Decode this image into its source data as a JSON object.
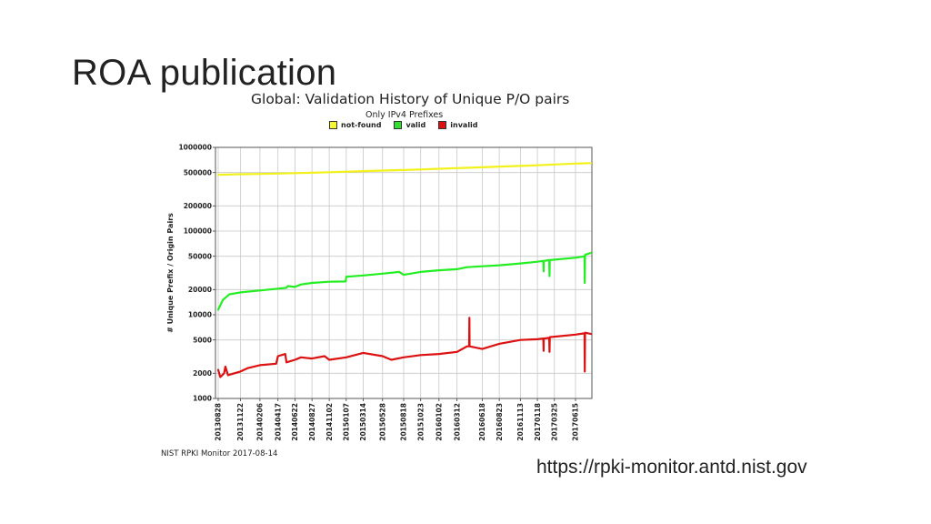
{
  "slide": {
    "title": "ROA publication",
    "source_url": "https://rpki-monitor.antd.nist.gov"
  },
  "chart_data": {
    "type": "line",
    "title": "Global: Validation History of Unique P/O pairs",
    "subtitle": "Only IPv4 Prefixes",
    "xlabel": "",
    "ylabel": "# Unique Prefix / Origin Pairs",
    "y_scale": "log",
    "ylim": [
      1000,
      1000000
    ],
    "grid": true,
    "legend_position": "top",
    "y_ticks": [
      1000,
      2000,
      5000,
      10000,
      20000,
      50000,
      100000,
      200000,
      500000,
      1000000
    ],
    "x_ticks": [
      "20130828",
      "20131122",
      "20140206",
      "20140417",
      "20140622",
      "20140827",
      "20141102",
      "20150107",
      "20150314",
      "20150528",
      "20150818",
      "20151023",
      "20160102",
      "20160312",
      "20160618",
      "20160823",
      "20161113",
      "20170118",
      "20170325",
      "20170615"
    ],
    "footer": "NIST RPKI Monitor 2017-08-14",
    "series": [
      {
        "name": "not-found",
        "color": "#f2f21a",
        "swatch": "#f5f532",
        "points": [
          [
            "2013-08-28",
            470000
          ],
          [
            "2013-11-22",
            478000
          ],
          [
            "2014-02-06",
            482000
          ],
          [
            "2014-04-17",
            486000
          ],
          [
            "2014-06-22",
            492000
          ],
          [
            "2014-08-27",
            498000
          ],
          [
            "2014-11-02",
            505000
          ],
          [
            "2015-01-07",
            512000
          ],
          [
            "2015-03-14",
            520000
          ],
          [
            "2015-05-28",
            528000
          ],
          [
            "2015-08-18",
            536000
          ],
          [
            "2015-10-23",
            545000
          ],
          [
            "2016-01-02",
            555000
          ],
          [
            "2016-03-12",
            565000
          ],
          [
            "2016-06-18",
            578000
          ],
          [
            "2016-08-23",
            590000
          ],
          [
            "2016-11-13",
            600000
          ],
          [
            "2017-01-18",
            610000
          ],
          [
            "2017-03-25",
            625000
          ],
          [
            "2017-06-15",
            640000
          ],
          [
            "2017-08-14",
            648000
          ]
        ]
      },
      {
        "name": "valid",
        "color": "#22ee22",
        "swatch": "#33dd33",
        "points": [
          [
            "2013-08-28",
            11500
          ],
          [
            "2013-09-15",
            15000
          ],
          [
            "2013-10-10",
            17500
          ],
          [
            "2013-11-22",
            18500
          ],
          [
            "2014-02-06",
            19500
          ],
          [
            "2014-04-17",
            20500
          ],
          [
            "2014-05-20",
            21000
          ],
          [
            "2014-05-25",
            22000
          ],
          [
            "2014-06-22",
            21500
          ],
          [
            "2014-07-15",
            23000
          ],
          [
            "2014-08-27",
            24000
          ],
          [
            "2014-11-02",
            24800
          ],
          [
            "2015-01-05",
            25000
          ],
          [
            "2015-01-07",
            28500
          ],
          [
            "2015-03-14",
            29500
          ],
          [
            "2015-05-28",
            31000
          ],
          [
            "2015-08-01",
            32500
          ],
          [
            "2015-08-18",
            30000
          ],
          [
            "2015-10-23",
            32500
          ],
          [
            "2016-01-02",
            34000
          ],
          [
            "2016-03-12",
            35000
          ],
          [
            "2016-04-20",
            37000
          ],
          [
            "2016-06-18",
            38000
          ],
          [
            "2016-08-23",
            39000
          ],
          [
            "2016-11-13",
            41000
          ],
          [
            "2017-01-18",
            43000
          ],
          [
            "2017-02-10",
            44000
          ],
          [
            "2017-02-11",
            33000
          ],
          [
            "2017-02-12",
            44000
          ],
          [
            "2017-03-05",
            45000
          ],
          [
            "2017-03-06",
            29000
          ],
          [
            "2017-03-07",
            45000
          ],
          [
            "2017-06-15",
            48000
          ],
          [
            "2017-07-20",
            50000
          ],
          [
            "2017-07-21",
            24000
          ],
          [
            "2017-07-22",
            52000
          ],
          [
            "2017-08-14",
            55000
          ]
        ]
      },
      {
        "name": "invalid",
        "color": "#dd1111",
        "swatch": "#dd1111",
        "points": [
          [
            "2013-08-28",
            2200
          ],
          [
            "2013-09-05",
            1800
          ],
          [
            "2013-09-20",
            2000
          ],
          [
            "2013-09-25",
            2400
          ],
          [
            "2013-10-05",
            1900
          ],
          [
            "2013-11-22",
            2100
          ],
          [
            "2013-12-20",
            2300
          ],
          [
            "2014-02-06",
            2500
          ],
          [
            "2014-04-10",
            2600
          ],
          [
            "2014-04-17",
            3200
          ],
          [
            "2014-05-15",
            3400
          ],
          [
            "2014-05-20",
            2700
          ],
          [
            "2014-06-22",
            2900
          ],
          [
            "2014-07-15",
            3100
          ],
          [
            "2014-08-27",
            3000
          ],
          [
            "2014-10-15",
            3200
          ],
          [
            "2014-11-02",
            2900
          ],
          [
            "2015-01-07",
            3100
          ],
          [
            "2015-03-14",
            3500
          ],
          [
            "2015-05-28",
            3200
          ],
          [
            "2015-07-01",
            2900
          ],
          [
            "2015-08-18",
            3100
          ],
          [
            "2015-10-23",
            3300
          ],
          [
            "2016-01-02",
            3400
          ],
          [
            "2016-03-12",
            3600
          ],
          [
            "2016-04-20",
            4200
          ],
          [
            "2016-04-28",
            4200
          ],
          [
            "2016-04-29",
            9200
          ],
          [
            "2016-04-30",
            4200
          ],
          [
            "2016-06-18",
            3900
          ],
          [
            "2016-08-23",
            4500
          ],
          [
            "2016-11-13",
            5000
          ],
          [
            "2017-01-18",
            5100
          ],
          [
            "2017-02-10",
            5200
          ],
          [
            "2017-02-11",
            3700
          ],
          [
            "2017-02-12",
            5200
          ],
          [
            "2017-03-05",
            5300
          ],
          [
            "2017-03-06",
            3600
          ],
          [
            "2017-03-07",
            5400
          ],
          [
            "2017-06-15",
            5800
          ],
          [
            "2017-07-20",
            6000
          ],
          [
            "2017-07-21",
            2100
          ],
          [
            "2017-07-22",
            6100
          ],
          [
            "2017-08-14",
            5900
          ]
        ]
      }
    ]
  }
}
